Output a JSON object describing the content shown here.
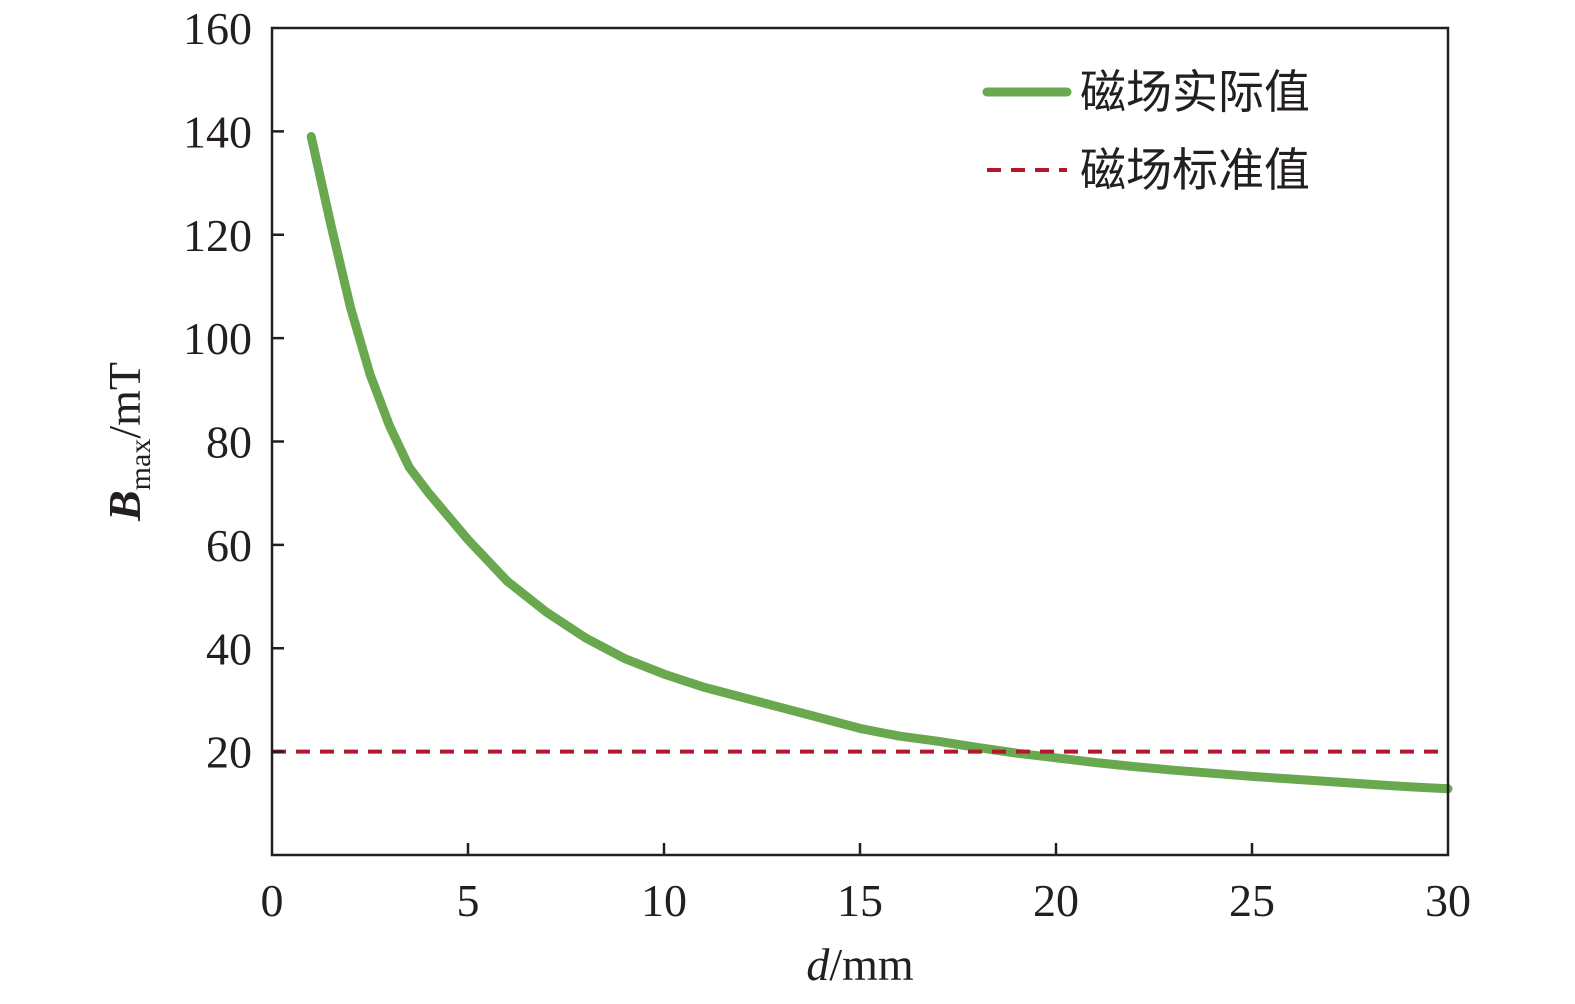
{
  "chart_data": {
    "type": "line",
    "xlabel": {
      "var": "d",
      "unit": "/mm"
    },
    "ylabel": {
      "var": "B",
      "sub": "max",
      "unit": "/mT"
    },
    "xlim": [
      0,
      30
    ],
    "ylim": [
      0,
      160
    ],
    "x_ticks": [
      0,
      5,
      10,
      15,
      20,
      25,
      30
    ],
    "y_ticks": [
      20,
      40,
      60,
      80,
      100,
      120,
      140,
      160
    ],
    "legend_position": "top-right",
    "grid": false,
    "series": [
      {
        "name": "磁场实际值",
        "style": "solid",
        "color": "#6aa84f",
        "x": [
          1,
          1.5,
          2,
          2.5,
          3,
          3.5,
          4,
          5,
          6,
          7,
          8,
          9,
          10,
          11,
          12,
          13,
          14,
          15,
          16,
          17,
          18,
          19,
          20,
          21,
          22,
          23,
          24,
          25,
          26,
          27,
          28,
          29,
          30
        ],
        "y": [
          139,
          122,
          106,
          93,
          83,
          75,
          70,
          61,
          53,
          47,
          42,
          38,
          35,
          32.5,
          30.5,
          28.5,
          26.5,
          24.5,
          23,
          22,
          20.8,
          19.7,
          18.8,
          17.9,
          17.1,
          16.4,
          15.8,
          15.2,
          14.7,
          14.2,
          13.7,
          13.2,
          12.8
        ]
      },
      {
        "name": "磁场标准值",
        "style": "dashed",
        "color": "#b2182b",
        "x": [
          0,
          30
        ],
        "y": [
          20,
          20
        ]
      }
    ]
  }
}
